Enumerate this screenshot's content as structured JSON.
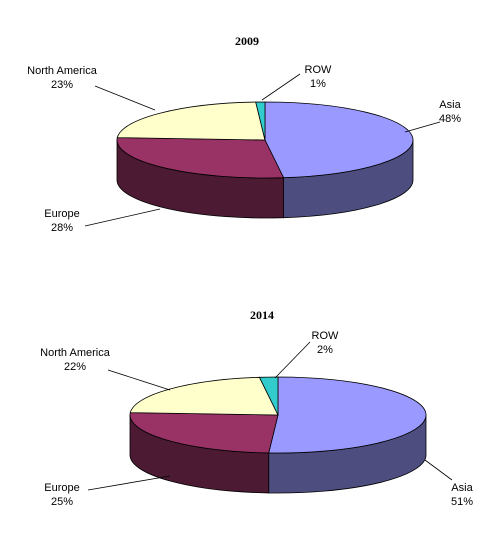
{
  "chart_data": [
    {
      "type": "pie",
      "title": "2009",
      "categories": [
        "Asia",
        "Europe",
        "North America",
        "ROW"
      ],
      "values": [
        48,
        28,
        23,
        1
      ],
      "value_labels": [
        "48%",
        "28%",
        "23%",
        "1%"
      ],
      "colors": [
        "#9999ff",
        "#993366",
        "#ffffcc",
        "#33cccc"
      ]
    },
    {
      "type": "pie",
      "title": "2014",
      "categories": [
        "Asia",
        "Europe",
        "North America",
        "ROW"
      ],
      "values": [
        51,
        25,
        22,
        2
      ],
      "value_labels": [
        "51%",
        "25%",
        "22%",
        "2%"
      ],
      "colors": [
        "#9999ff",
        "#993366",
        "#ffffcc",
        "#33cccc"
      ]
    }
  ]
}
